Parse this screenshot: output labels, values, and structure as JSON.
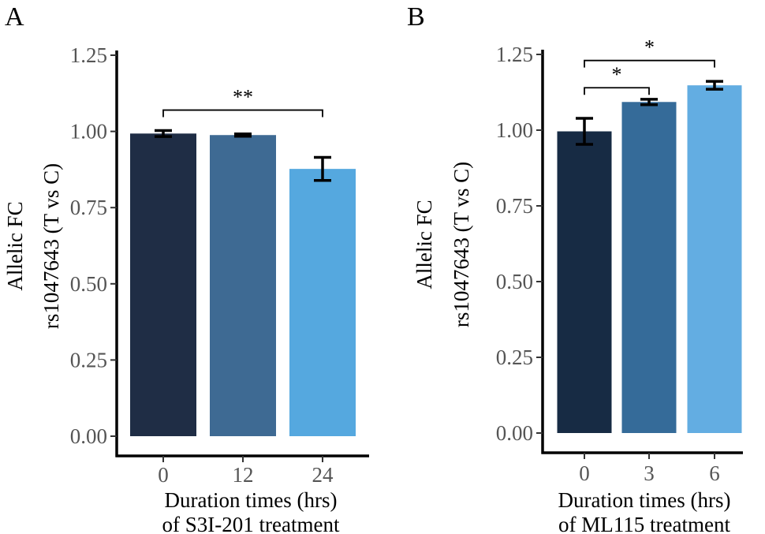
{
  "chart_data": [
    {
      "panel": "A",
      "type": "bar",
      "categories": [
        "0",
        "12",
        "24"
      ],
      "values": [
        0.993,
        0.988,
        0.877
      ],
      "errors": [
        0.01,
        0.004,
        0.038
      ],
      "colors": [
        "#1f2d45",
        "#3e6a93",
        "#55a8df"
      ],
      "title": "",
      "xlabel": [
        "Duration times (hrs)",
        "of S3I-201 treatment"
      ],
      "ylabel": [
        "Allelic FC",
        "rs1047643 (T vs C)"
      ],
      "ylim": [
        0,
        1.25
      ],
      "yticks": [
        "0.00",
        "0.25",
        "0.50",
        "0.75",
        "1.00",
        "1.25"
      ],
      "grid": false,
      "significance": [
        {
          "from": "0",
          "to": "24",
          "label": "**",
          "y": 1.07
        }
      ]
    },
    {
      "panel": "B",
      "type": "bar",
      "categories": [
        "0",
        "3",
        "6"
      ],
      "values": [
        0.996,
        1.093,
        1.148
      ],
      "errors": [
        0.043,
        0.009,
        0.013
      ],
      "colors": [
        "#172b44",
        "#356b99",
        "#63ade2"
      ],
      "title": "",
      "xlabel": [
        "Duration times (hrs)",
        "of ML115 treatment"
      ],
      "ylabel": [
        "Allelic FC",
        "rs1047643 (T vs C)"
      ],
      "ylim": [
        0,
        1.25
      ],
      "yticks": [
        "0.00",
        "0.25",
        "0.50",
        "0.75",
        "1.00",
        "1.25"
      ],
      "grid": false,
      "significance": [
        {
          "from": "0",
          "to": "3",
          "label": "*",
          "y": 1.14
        },
        {
          "from": "0",
          "to": "6",
          "label": "*",
          "y": 1.23
        }
      ]
    }
  ]
}
